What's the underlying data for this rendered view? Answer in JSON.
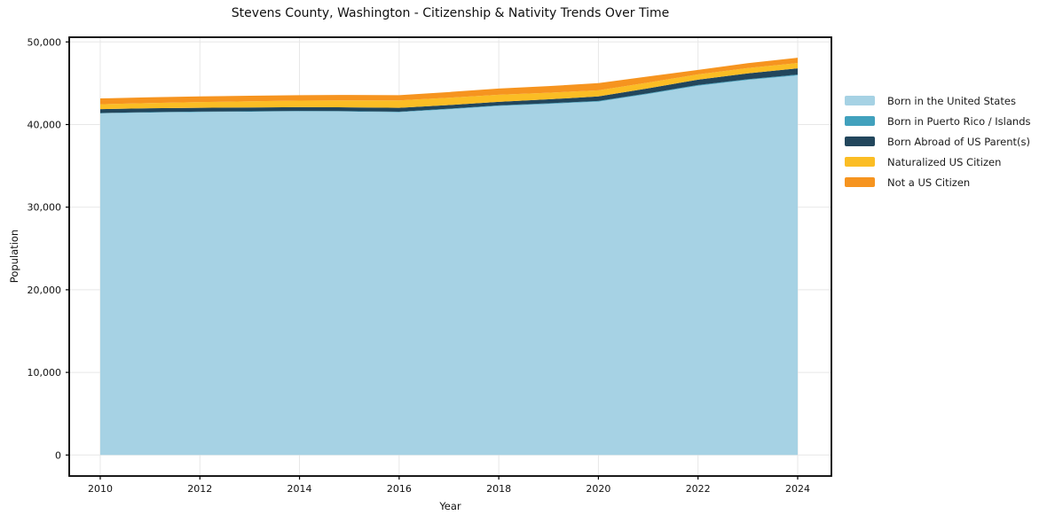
{
  "title": "Stevens County, Washington - Citizenship & Nativity Trends Over Time",
  "chart_data": {
    "type": "area",
    "stacked": true,
    "title": "Stevens County, Washington - Citizenship & Nativity Trends Over Time",
    "xlabel": "Year",
    "ylabel": "Population",
    "x": [
      2010,
      2011,
      2012,
      2013,
      2014,
      2015,
      2016,
      2017,
      2018,
      2019,
      2020,
      2021,
      2022,
      2023,
      2024
    ],
    "series": [
      {
        "name": "Born in the United States",
        "color": "#a6d2e4",
        "values": [
          41350,
          41450,
          41520,
          41560,
          41600,
          41570,
          41500,
          41850,
          42250,
          42500,
          42780,
          43700,
          44700,
          45400,
          45950
        ]
      },
      {
        "name": "Born in Puerto Rico / Islands",
        "color": "#41a1bd",
        "values": [
          40,
          45,
          45,
          50,
          50,
          55,
          60,
          65,
          70,
          75,
          80,
          80,
          85,
          90,
          100
        ]
      },
      {
        "name": "Born Abroad of US Parent(s)",
        "color": "#22465c",
        "values": [
          480,
          470,
          465,
          460,
          455,
          455,
          460,
          445,
          430,
          480,
          540,
          600,
          650,
          700,
          750
        ]
      },
      {
        "name": "Naturalized US Citizen",
        "color": "#fbbd24",
        "values": [
          590,
          640,
          690,
          740,
          790,
          850,
          900,
          880,
          860,
          800,
          750,
          700,
          640,
          645,
          650
        ]
      },
      {
        "name": "Not a US Citizen",
        "color": "#f6941f",
        "values": [
          700,
          690,
          685,
          675,
          665,
          650,
          640,
          695,
          750,
          800,
          860,
          740,
          540,
          590,
          640
        ]
      }
    ],
    "x_ticks": [
      2010,
      2012,
      2014,
      2016,
      2018,
      2020,
      2022,
      2024
    ],
    "y_ticks": [
      0,
      10000,
      20000,
      30000,
      40000,
      50000
    ],
    "y_tick_labels": [
      "0",
      "10,000",
      "20,000",
      "30,000",
      "40,000",
      "50,000"
    ],
    "xlim": [
      2009.377,
      2024.677
    ],
    "ylim": [
      -2543,
      50568
    ],
    "grid": true,
    "grid_color": "#e7e7e7",
    "frame_color": "#000000",
    "tick_label_color": "#111111",
    "legend_position": "right-outside"
  }
}
